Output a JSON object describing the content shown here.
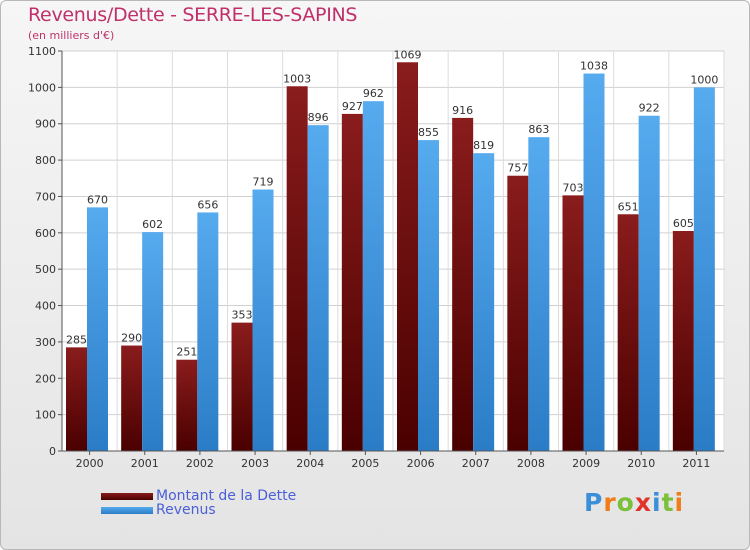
{
  "chart_data": {
    "type": "bar",
    "title": "Revenus/Dette - SERRE-LES-SAPINS",
    "subtitle": "(en milliers d'€)",
    "categories": [
      "2000",
      "2001",
      "2002",
      "2003",
      "2004",
      "2005",
      "2006",
      "2007",
      "2008",
      "2009",
      "2010",
      "2011"
    ],
    "series": [
      {
        "name": "Montant de la Dette",
        "color": "#6b0a0a",
        "values": [
          285,
          290,
          251,
          353,
          1003,
          927,
          1069,
          916,
          757,
          703,
          651,
          605
        ]
      },
      {
        "name": "Revenus",
        "color": "#3d9be6",
        "values": [
          670,
          602,
          656,
          719,
          896,
          962,
          855,
          819,
          863,
          1038,
          922,
          1000
        ]
      }
    ],
    "ylim": [
      0,
      1100
    ],
    "yticks": [
      0,
      100,
      200,
      300,
      400,
      500,
      600,
      700,
      800,
      900,
      1000,
      1100
    ],
    "grid": true,
    "legend": "bottom-left"
  },
  "logo": {
    "text": "Proxiti",
    "letter_colors": [
      "#3a8fd8",
      "#f07d1a",
      "#7cbf3a",
      "#e0332a",
      "#3a8fd8",
      "#7cbf3a",
      "#f07d1a"
    ]
  }
}
